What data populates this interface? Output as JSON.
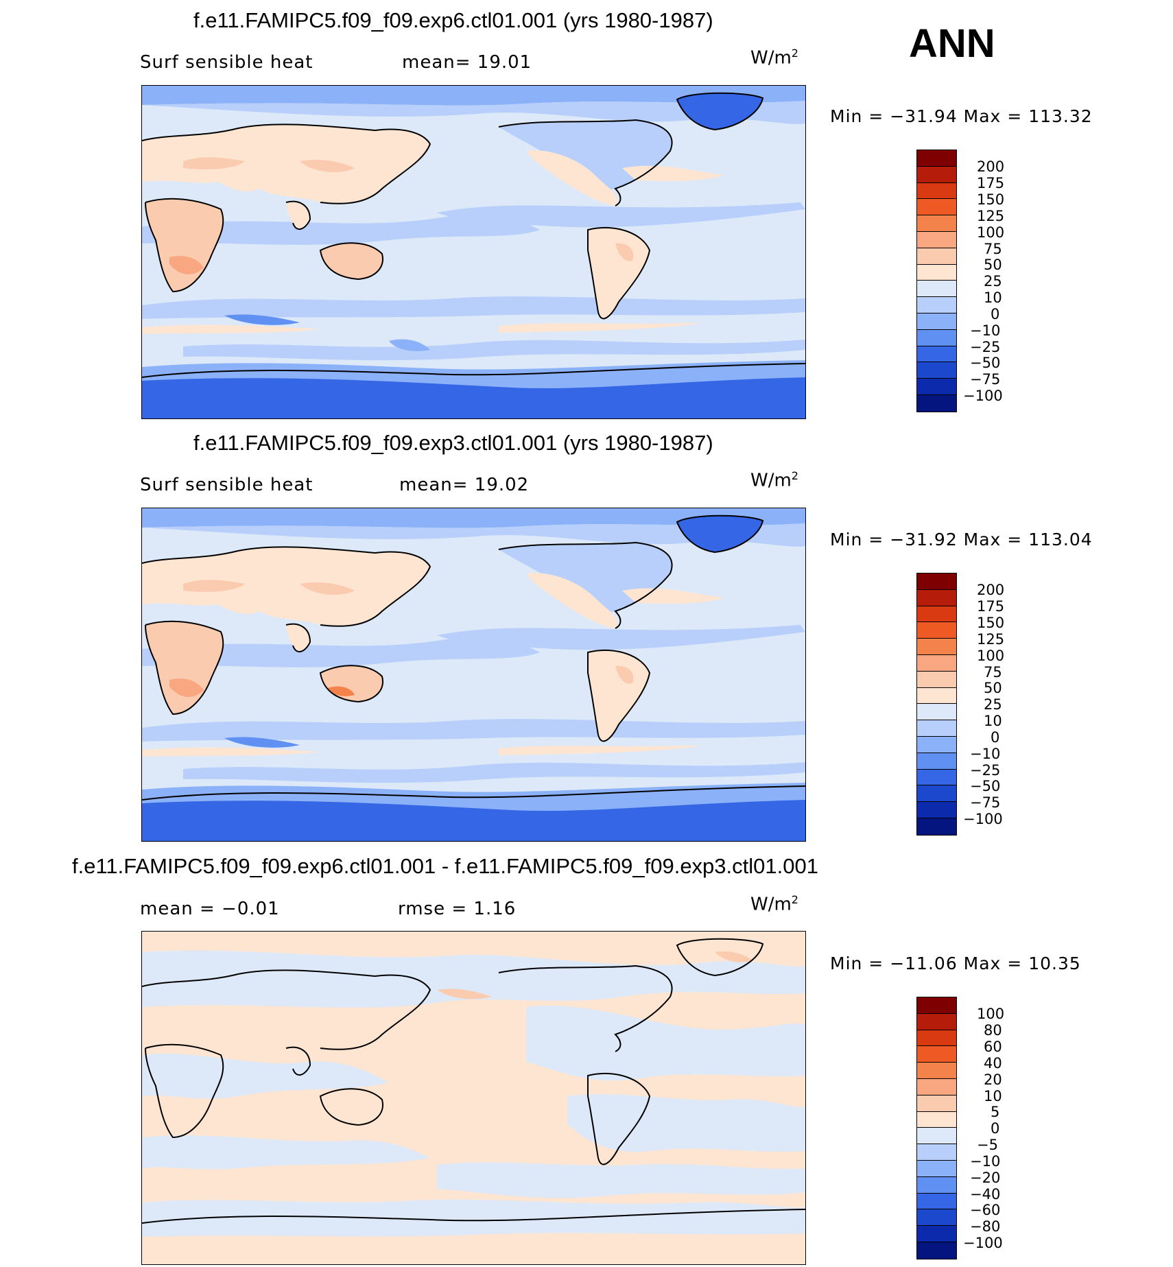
{
  "ann_label": "ANN",
  "unit_base": "W/m",
  "unit_exp": "2",
  "panels": [
    {
      "title": "f.e11.FAMIPC5.f09_f09.exp6.ctl01.001 (yrs 1980-1987)",
      "var_label": "Surf sensible heat",
      "stat1": "mean=  19.01",
      "stat2": "",
      "minmax": "Min = −31.94 Max = 113.32",
      "levels": [
        "200",
        "175",
        "150",
        "125",
        "100",
        "75",
        "50",
        "25",
        "10",
        "0",
        "−10",
        "−25",
        "−50",
        "−75",
        "−100"
      ],
      "colors": [
        "#7f0000",
        "#b51c0a",
        "#d93a12",
        "#ef5a24",
        "#f4824b",
        "#f8a780",
        "#fbcbb0",
        "#fde5d2",
        "#dde9f8",
        "#b7cffa",
        "#8bb2f8",
        "#5f90f2",
        "#3566e6",
        "#1b48cc",
        "#0b2bac",
        "#05157f"
      ]
    },
    {
      "title": "f.e11.FAMIPC5.f09_f09.exp3.ctl01.001 (yrs 1980-1987)",
      "var_label": "Surf sensible heat",
      "stat1": "mean=  19.02",
      "stat2": "",
      "minmax": "Min = −31.92 Max = 113.04",
      "levels": [
        "200",
        "175",
        "150",
        "125",
        "100",
        "75",
        "50",
        "25",
        "10",
        "0",
        "−10",
        "−25",
        "−50",
        "−75",
        "−100"
      ],
      "colors": [
        "#7f0000",
        "#b51c0a",
        "#d93a12",
        "#ef5a24",
        "#f4824b",
        "#f8a780",
        "#fbcbb0",
        "#fde5d2",
        "#dde9f8",
        "#b7cffa",
        "#8bb2f8",
        "#5f90f2",
        "#3566e6",
        "#1b48cc",
        "#0b2bac",
        "#05157f"
      ]
    },
    {
      "title": "f.e11.FAMIPC5.f09_f09.exp6.ctl01.001 - f.e11.FAMIPC5.f09_f09.exp3.ctl01.001",
      "var_label": "",
      "stat1": "mean =  −0.01",
      "stat2": "rmse =   1.16",
      "minmax": "Min = −11.06 Max =  10.35",
      "levels": [
        "100",
        "80",
        "60",
        "40",
        "20",
        "10",
        "5",
        "0",
        "−5",
        "−10",
        "−20",
        "−40",
        "−60",
        "−80",
        "−100"
      ],
      "colors": [
        "#7f0000",
        "#b51c0a",
        "#d93a12",
        "#ef5a24",
        "#f4824b",
        "#f8a780",
        "#fbcbb0",
        "#fde5d2",
        "#dde9f8",
        "#b7cffa",
        "#8bb2f8",
        "#5f90f2",
        "#3566e6",
        "#1b48cc",
        "#0b2bac",
        "#05157f"
      ]
    }
  ]
}
